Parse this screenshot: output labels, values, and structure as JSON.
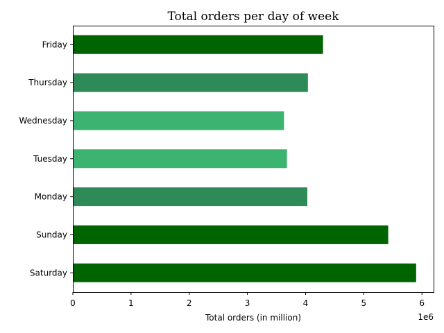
{
  "chart_data": {
    "type": "bar",
    "orientation": "horizontal",
    "title": "Total orders per day of week",
    "xlabel": "Total orders (in million)",
    "ylabel": "",
    "x_offset_label": "1e6",
    "xlim": [
      0,
      6200000
    ],
    "x_ticks": [
      0,
      1,
      2,
      3,
      4,
      5,
      6
    ],
    "grid": false,
    "categories": [
      "Saturday",
      "Sunday",
      "Monday",
      "Tuesday",
      "Wednesday",
      "Thursday",
      "Friday"
    ],
    "values": [
      5900000,
      5420000,
      4030000,
      3680000,
      3630000,
      4040000,
      4300000
    ],
    "colors": [
      "#006400",
      "#006400",
      "#2e8b57",
      "#3cb371",
      "#3cb371",
      "#2e8b57",
      "#006400"
    ]
  }
}
